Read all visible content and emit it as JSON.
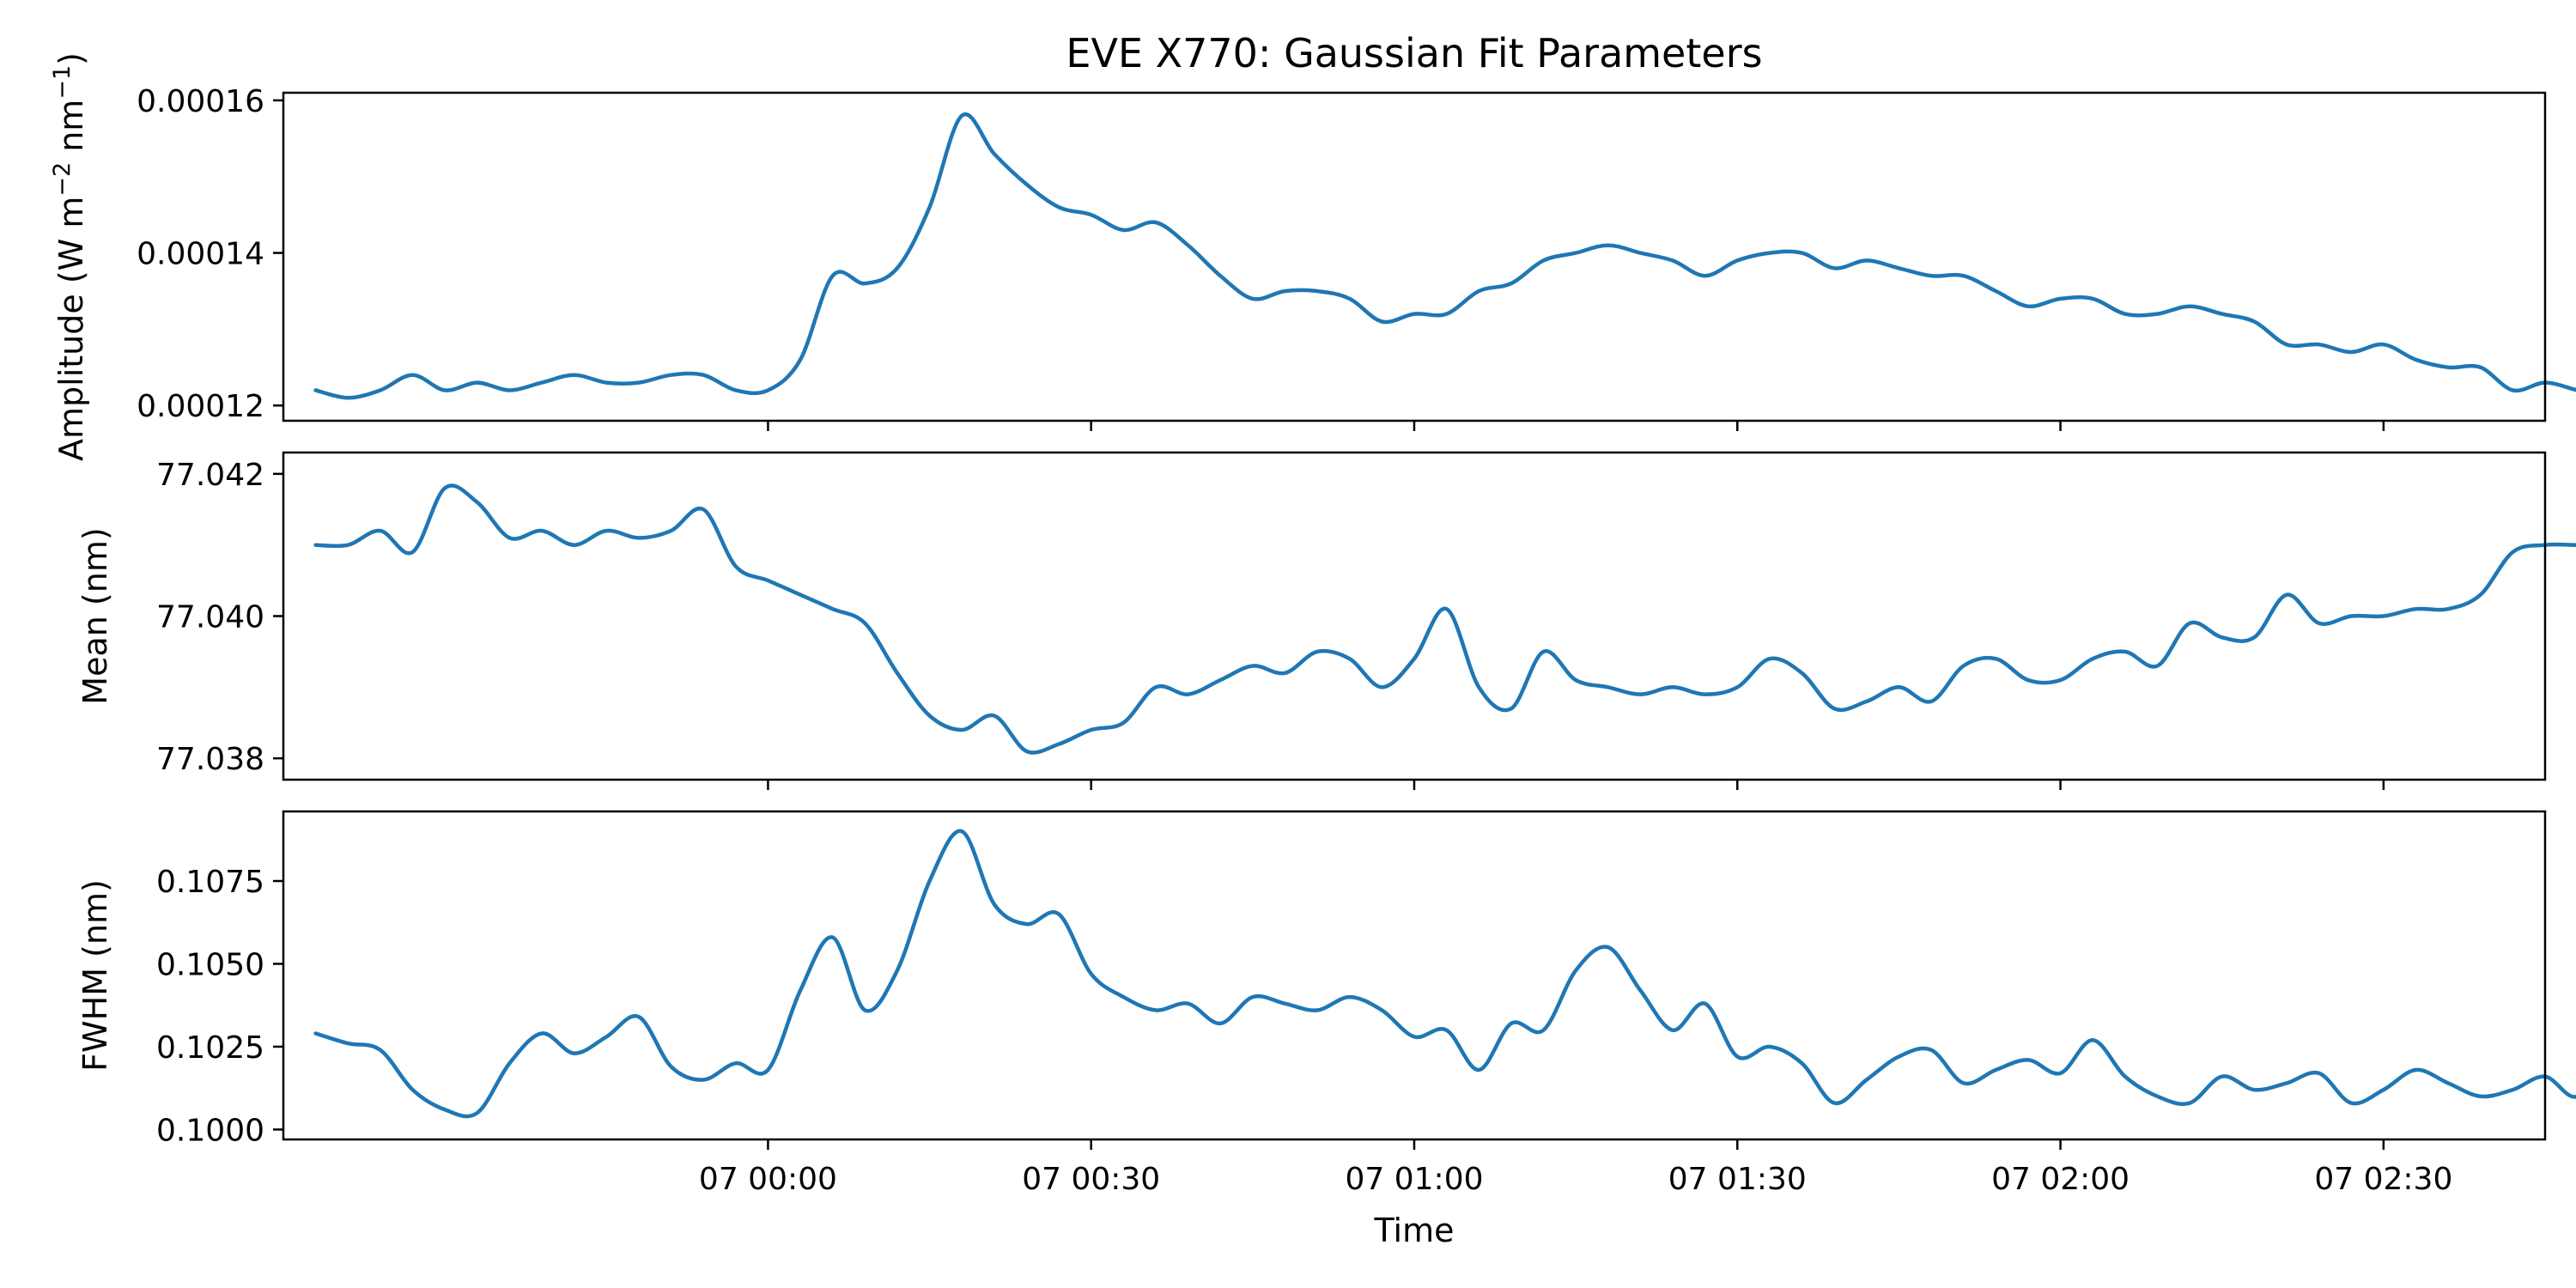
{
  "chart_data": [
    {
      "type": "line",
      "title": "EVE X770: Gaussian Fit Parameters",
      "ylabel_parts": [
        "Amplitude (W m",
        "−2",
        " nm",
        "−1",
        ")"
      ],
      "ylim": [
        0.000118,
        0.000161
      ],
      "yticks": [
        0.00012,
        0.00014,
        0.00016
      ],
      "ytick_labels": [
        "0.00012",
        "0.00014",
        "0.00016"
      ],
      "color": "#1f77b4",
      "x_minutes": [
        -42,
        -39,
        -36,
        -33,
        -30,
        -27,
        -24,
        -21,
        -18,
        -15,
        -12,
        -9,
        -6,
        -3,
        0,
        3,
        6,
        9,
        12,
        15,
        18,
        21,
        24,
        27,
        30,
        33,
        36,
        39,
        42,
        45,
        48,
        51,
        54,
        57,
        60,
        63,
        66,
        69,
        72,
        75,
        78,
        81,
        84,
        87,
        90,
        93,
        96,
        99,
        102,
        105,
        108,
        111,
        114,
        117,
        120,
        123,
        126,
        129,
        132,
        135,
        138,
        141,
        144,
        147,
        150,
        153,
        156,
        159,
        162,
        165,
        168,
        171,
        174
      ],
      "values": [
        0.000122,
        0.000121,
        0.000122,
        0.000124,
        0.000122,
        0.000123,
        0.000122,
        0.000123,
        0.000124,
        0.000123,
        0.000123,
        0.000124,
        0.000124,
        0.000122,
        0.000122,
        0.000126,
        0.000137,
        0.000136,
        0.000138,
        0.000146,
        0.000158,
        0.000153,
        0.000149,
        0.000146,
        0.000145,
        0.000143,
        0.000144,
        0.000141,
        0.000137,
        0.000134,
        0.000135,
        0.000135,
        0.000134,
        0.000131,
        0.000132,
        0.000132,
        0.000135,
        0.000136,
        0.000139,
        0.00014,
        0.000141,
        0.00014,
        0.000139,
        0.000137,
        0.000139,
        0.00014,
        0.00014,
        0.000138,
        0.000139,
        0.000138,
        0.000137,
        0.000137,
        0.000135,
        0.000133,
        0.000134,
        0.000134,
        0.000132,
        0.000132,
        0.000133,
        0.000132,
        0.000131,
        0.000128,
        0.000128,
        0.000127,
        0.000128,
        0.000126,
        0.000125,
        0.000125,
        0.000122,
        0.000123,
        0.000122,
        0.000121,
        0.000121
      ]
    },
    {
      "type": "line",
      "ylabel": "Mean (nm)",
      "ylim": [
        77.0377,
        77.0423
      ],
      "yticks": [
        77.038,
        77.04,
        77.042
      ],
      "ytick_labels": [
        "77.038",
        "77.040",
        "77.042"
      ],
      "color": "#1f77b4",
      "x_minutes": [
        -42,
        -39,
        -36,
        -33,
        -30,
        -27,
        -24,
        -21,
        -18,
        -15,
        -12,
        -9,
        -6,
        -3,
        0,
        3,
        6,
        9,
        12,
        15,
        18,
        21,
        24,
        27,
        30,
        33,
        36,
        39,
        42,
        45,
        48,
        51,
        54,
        57,
        60,
        63,
        66,
        69,
        72,
        75,
        78,
        81,
        84,
        87,
        90,
        93,
        96,
        99,
        102,
        105,
        108,
        111,
        114,
        117,
        120,
        123,
        126,
        129,
        132,
        135,
        138,
        141,
        144,
        147,
        150,
        153,
        156,
        159,
        162,
        165,
        168,
        171,
        174
      ],
      "values": [
        77.041,
        77.041,
        77.0412,
        77.0409,
        77.0418,
        77.0416,
        77.0411,
        77.0412,
        77.041,
        77.0412,
        77.0411,
        77.0412,
        77.0415,
        77.0407,
        77.0405,
        77.0403,
        77.0401,
        77.0399,
        77.0392,
        77.0386,
        77.0384,
        77.0386,
        77.0381,
        77.0382,
        77.0384,
        77.0385,
        77.039,
        77.0389,
        77.0391,
        77.0393,
        77.0392,
        77.0395,
        77.0394,
        77.039,
        77.0394,
        77.0401,
        77.039,
        77.0387,
        77.0395,
        77.0391,
        77.039,
        77.0389,
        77.039,
        77.0389,
        77.039,
        77.0394,
        77.0392,
        77.0387,
        77.0388,
        77.039,
        77.0388,
        77.0393,
        77.0394,
        77.0391,
        77.0391,
        77.0394,
        77.0395,
        77.0393,
        77.0399,
        77.0397,
        77.0397,
        77.0403,
        77.0399,
        77.04,
        77.04,
        77.0401,
        77.0401,
        77.0403,
        77.0409,
        77.041,
        77.041,
        77.041,
        77.0405
      ]
    },
    {
      "type": "line",
      "ylabel": "FWHM (nm)",
      "xlabel": "Time",
      "ylim": [
        0.0997,
        0.1096
      ],
      "yticks": [
        0.1,
        0.1025,
        0.105,
        0.1075
      ],
      "ytick_labels": [
        "0.1000",
        "0.1025",
        "0.1050",
        "0.1075"
      ],
      "xticks_minutes": [
        0,
        30,
        60,
        90,
        120,
        150
      ],
      "xtick_labels": [
        "07 00:00",
        "07 00:30",
        "07 01:00",
        "07 01:30",
        "07 02:00",
        "07 02:30"
      ],
      "xlim_minutes": [
        -45,
        165
      ],
      "color": "#1f77b4",
      "x_minutes": [
        -42,
        -39,
        -36,
        -33,
        -30,
        -27,
        -24,
        -21,
        -18,
        -15,
        -12,
        -9,
        -6,
        -3,
        0,
        3,
        6,
        9,
        12,
        15,
        18,
        21,
        24,
        27,
        30,
        33,
        36,
        39,
        42,
        45,
        48,
        51,
        54,
        57,
        60,
        63,
        66,
        69,
        72,
        75,
        78,
        81,
        84,
        87,
        90,
        93,
        96,
        99,
        102,
        105,
        108,
        111,
        114,
        117,
        120,
        123,
        126,
        129,
        132,
        135,
        138,
        141,
        144,
        147,
        150,
        153,
        156,
        159,
        162,
        165,
        168,
        171,
        174
      ],
      "values": [
        0.1029,
        0.1026,
        0.1024,
        0.1012,
        0.1006,
        0.1005,
        0.102,
        0.1029,
        0.1023,
        0.1028,
        0.1034,
        0.1019,
        0.1015,
        0.102,
        0.1018,
        0.1042,
        0.1058,
        0.1036,
        0.1048,
        0.1075,
        0.109,
        0.1068,
        0.1062,
        0.1065,
        0.1047,
        0.104,
        0.1036,
        0.1038,
        0.1032,
        0.104,
        0.1038,
        0.1036,
        0.104,
        0.1036,
        0.1028,
        0.103,
        0.1018,
        0.1032,
        0.103,
        0.1048,
        0.1055,
        0.1042,
        0.103,
        0.1038,
        0.1022,
        0.1025,
        0.102,
        0.1008,
        0.1015,
        0.1022,
        0.1024,
        0.1014,
        0.1018,
        0.1021,
        0.1017,
        0.1027,
        0.1016,
        0.101,
        0.1008,
        0.1016,
        0.1012,
        0.1014,
        0.1017,
        0.1008,
        0.1012,
        0.1018,
        0.1014,
        0.101,
        0.1012,
        0.1016,
        0.101,
        0.1024,
        0.1024
      ]
    }
  ]
}
